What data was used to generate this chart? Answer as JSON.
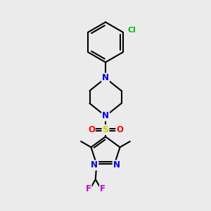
{
  "background_color": "#ebebeb",
  "bond_color": "#000000",
  "atom_colors": {
    "N": "#0000dd",
    "O": "#ff0000",
    "S": "#cccc00",
    "Cl": "#00bb00",
    "F": "#cc00cc",
    "C": "#000000"
  },
  "figsize": [
    3.0,
    3.0
  ],
  "dpi": 100
}
